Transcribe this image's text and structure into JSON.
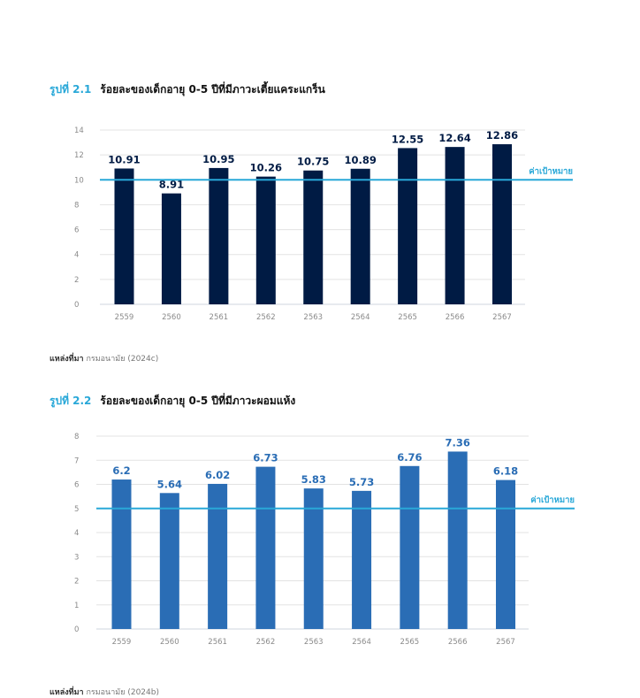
{
  "chart_data": [
    {
      "type": "bar",
      "figure_number": "รูปที่ 2.1",
      "title": "ร้อยละของเด็กอายุ 0-5 ปีที่มีภาวะเตี้ยแคระแกร็น",
      "categories": [
        "2559",
        "2560",
        "2561",
        "2562",
        "2563",
        "2564",
        "2565",
        "2566",
        "2567"
      ],
      "values": [
        10.91,
        8.91,
        10.95,
        10.26,
        10.75,
        10.89,
        12.55,
        12.64,
        12.86
      ],
      "value_labels": [
        "10.91",
        "8.91",
        "10.95",
        "10.26",
        "10.75",
        "10.89",
        "12.55",
        "12.64",
        "12.86"
      ],
      "yticks": [
        "0",
        "2",
        "4",
        "6",
        "8",
        "10",
        "12",
        "14"
      ],
      "ylim": [
        0,
        14
      ],
      "xlabel": "",
      "ylabel": "",
      "grid": true,
      "bar_color": "#001b44",
      "target": {
        "value": 10,
        "label": "ค่าเป้าหมาย",
        "color": "#29a8d8"
      },
      "source_label": "แหล่งที่มา",
      "source_text": "กรมอนามัย (2024c)"
    },
    {
      "type": "bar",
      "figure_number": "รูปที่ 2.2",
      "title": "ร้อยละของเด็กอายุ 0-5 ปีที่มีภาวะผอมแห้ง",
      "categories": [
        "2559",
        "2560",
        "2561",
        "2562",
        "2563",
        "2564",
        "2565",
        "2566",
        "2567"
      ],
      "values": [
        6.2,
        5.64,
        6.02,
        6.73,
        5.83,
        5.73,
        6.76,
        7.36,
        6.18
      ],
      "value_labels": [
        "6.2",
        "5.64",
        "6.02",
        "6.73",
        "5.83",
        "5.73",
        "6.76",
        "7.36",
        "6.18"
      ],
      "yticks": [
        "0",
        "1",
        "2",
        "3",
        "4",
        "5",
        "6",
        "7",
        "8"
      ],
      "ylim": [
        0,
        8
      ],
      "xlabel": "",
      "ylabel": "",
      "grid": true,
      "bar_color": "#2a6db5",
      "target": {
        "value": 5,
        "label": "ค่าเป้าหมาย",
        "color": "#29a8d8"
      },
      "source_label": "แหล่งที่มา",
      "source_text": "กรมอนามัย (2024b)"
    }
  ]
}
